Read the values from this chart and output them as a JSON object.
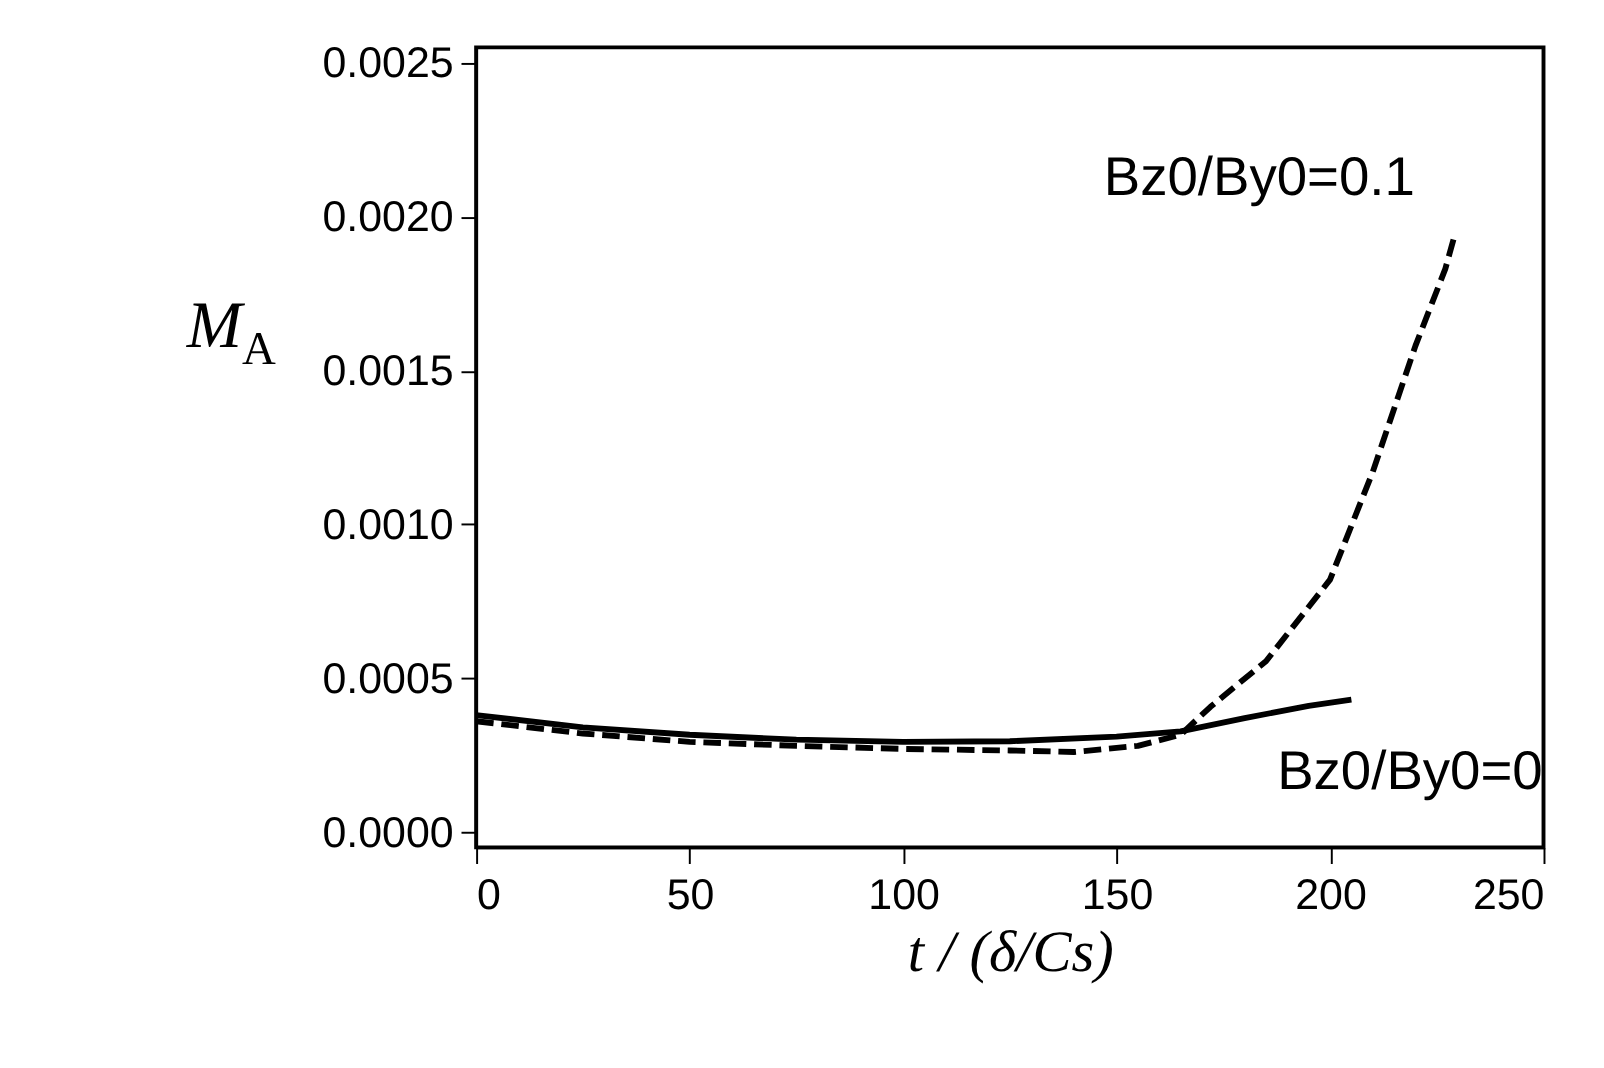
{
  "chart_data": {
    "type": "line",
    "xlabel": "t / (δ/Cs)",
    "ylabel": "M$_{A}$",
    "xlim": [
      0,
      250
    ],
    "xticks": [
      0,
      50,
      100,
      150,
      200,
      250
    ],
    "ylim": [
      -5e-05,
      0.00255
    ],
    "yticks": [
      {
        "value": 0,
        "label": "0.0000"
      },
      {
        "value": 0.0005,
        "label": "0.0005"
      },
      {
        "value": 0.001,
        "label": "0.0010"
      },
      {
        "value": 0.0015,
        "label": "0.0015"
      },
      {
        "value": 0.002,
        "label": "0.0020"
      },
      {
        "value": 0.0025,
        "label": "0.0025"
      }
    ],
    "grid": false,
    "legend": false,
    "marker": "none",
    "series": [
      {
        "name": "Bz0/By0=0",
        "color": "#000000",
        "line_style": "solid",
        "x": [
          0,
          25,
          50,
          75,
          100,
          125,
          150,
          165,
          180,
          195,
          205
        ],
        "values": [
          0.00038,
          0.00034,
          0.000316,
          0.0003,
          0.000293,
          0.000295,
          0.00031,
          0.000327,
          0.00037,
          0.00041,
          0.00043
        ]
      },
      {
        "name": "Bz0/By0=0.1",
        "color": "#000000",
        "line_style": "dashed",
        "x": [
          0,
          25,
          50,
          75,
          100,
          125,
          140,
          155,
          165,
          172,
          185,
          200,
          210,
          220,
          227,
          229
        ],
        "values": [
          0.00036,
          0.00032,
          0.000293,
          0.00028,
          0.00027,
          0.000265,
          0.00026,
          0.00028,
          0.000316,
          0.000407,
          0.000555,
          0.00082,
          0.00117,
          0.00158,
          0.00183,
          0.00193
        ]
      }
    ]
  }
}
